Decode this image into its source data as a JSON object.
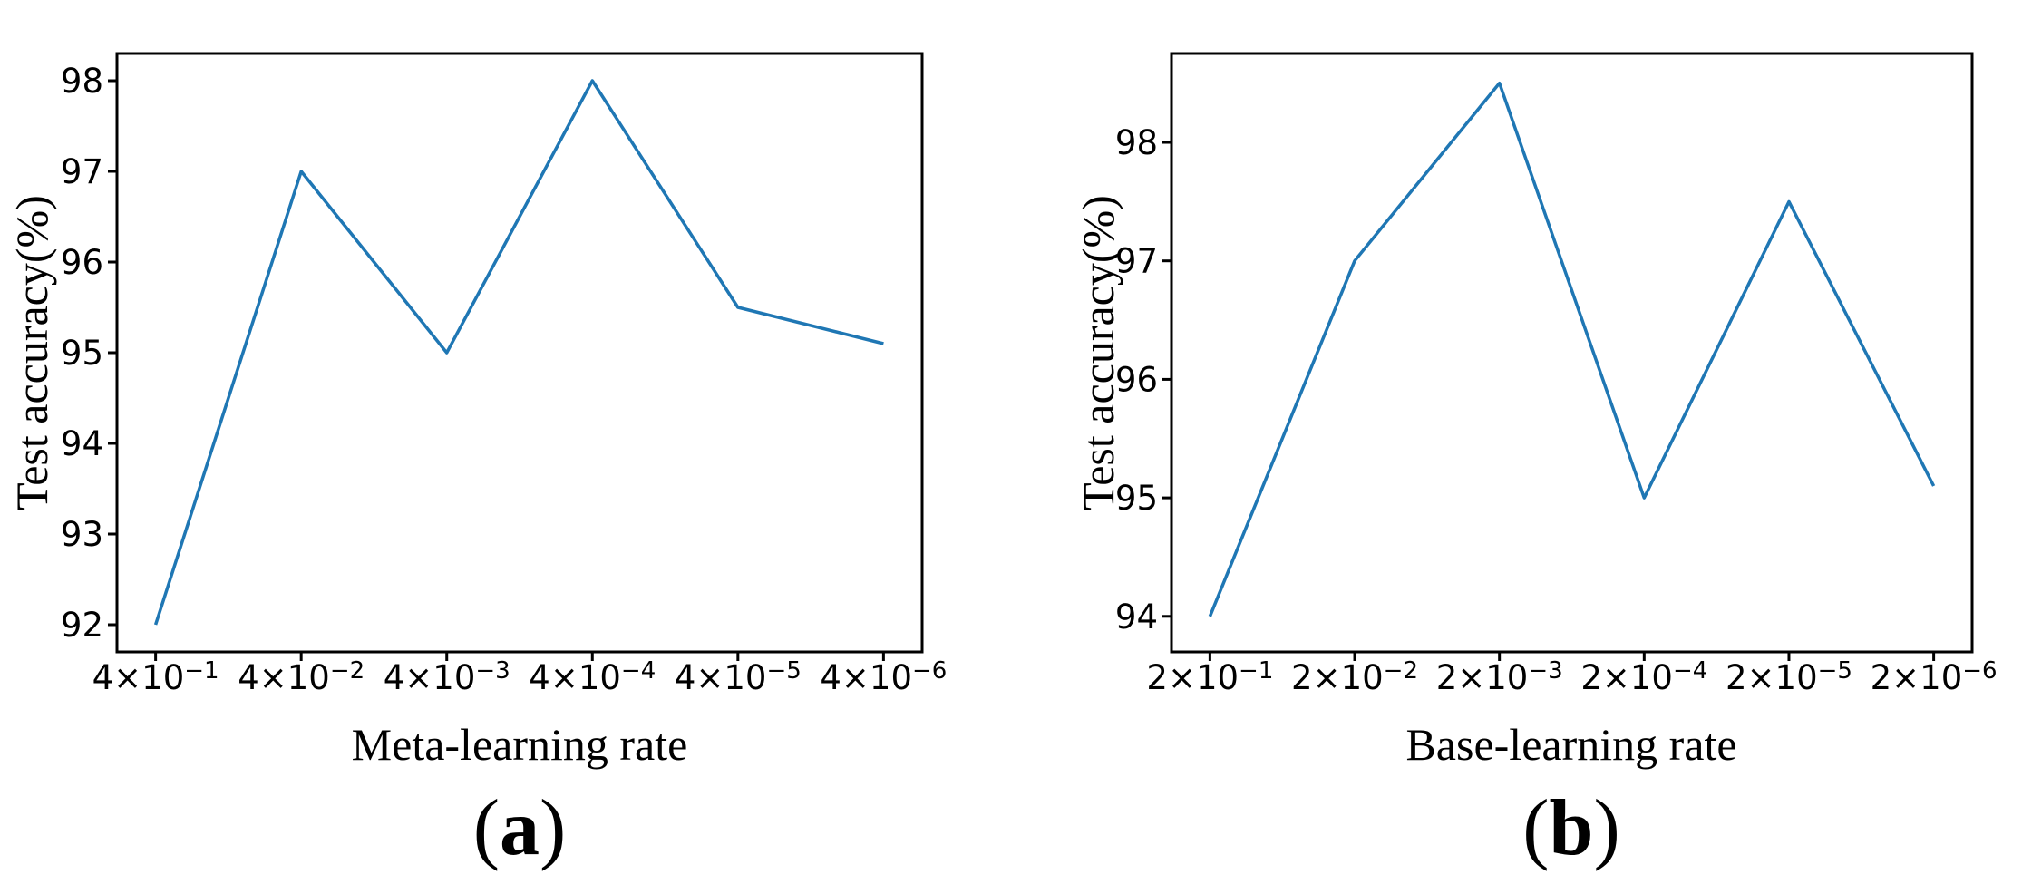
{
  "figure": {
    "background": "#ffffff",
    "axis_color": "#000000"
  },
  "chart_data": [
    {
      "type": "line",
      "panel": "a",
      "title": "",
      "xlabel": "Meta-learning rate",
      "ylabel": "Test accuracy(%)",
      "caption": {
        "text": "(a)",
        "open": "(",
        "letter": "a",
        "close": ")"
      },
      "categories": [
        "4×10⁻¹",
        "4×10⁻²",
        "4×10⁻³",
        "4×10⁻⁴",
        "4×10⁻⁵",
        "4×10⁻⁶"
      ],
      "x_ticks": [
        {
          "coef": "4×10",
          "exp": "−1"
        },
        {
          "coef": "4×10",
          "exp": "−2"
        },
        {
          "coef": "4×10",
          "exp": "−3"
        },
        {
          "coef": "4×10",
          "exp": "−4"
        },
        {
          "coef": "4×10",
          "exp": "−5"
        },
        {
          "coef": "4×10",
          "exp": "−6"
        }
      ],
      "values": [
        92.0,
        97.0,
        95.0,
        98.0,
        95.5,
        95.1
      ],
      "y_ticks": [
        92,
        93,
        94,
        95,
        96,
        97,
        98
      ],
      "ylim": [
        91.7,
        98.3
      ],
      "grid": false,
      "legend": "none",
      "line_color": "#1f77b4"
    },
    {
      "type": "line",
      "panel": "b",
      "title": "",
      "xlabel": "Base-learning rate",
      "ylabel": "Test accuracy(%)",
      "caption": {
        "text": "(b)",
        "open": "(",
        "letter": "b",
        "close": ")"
      },
      "categories": [
        "2×10⁻¹",
        "2×10⁻²",
        "2×10⁻³",
        "2×10⁻⁴",
        "2×10⁻⁵",
        "2×10⁻⁶"
      ],
      "x_ticks": [
        {
          "coef": "2×10",
          "exp": "−1"
        },
        {
          "coef": "2×10",
          "exp": "−2"
        },
        {
          "coef": "2×10",
          "exp": "−3"
        },
        {
          "coef": "2×10",
          "exp": "−4"
        },
        {
          "coef": "2×10",
          "exp": "−5"
        },
        {
          "coef": "2×10",
          "exp": "−6"
        }
      ],
      "values": [
        94.0,
        97.0,
        98.5,
        95.0,
        97.5,
        95.1
      ],
      "y_ticks": [
        94,
        95,
        96,
        97,
        98
      ],
      "ylim": [
        93.7,
        98.75
      ],
      "grid": false,
      "legend": "none",
      "line_color": "#1f77b4"
    }
  ]
}
